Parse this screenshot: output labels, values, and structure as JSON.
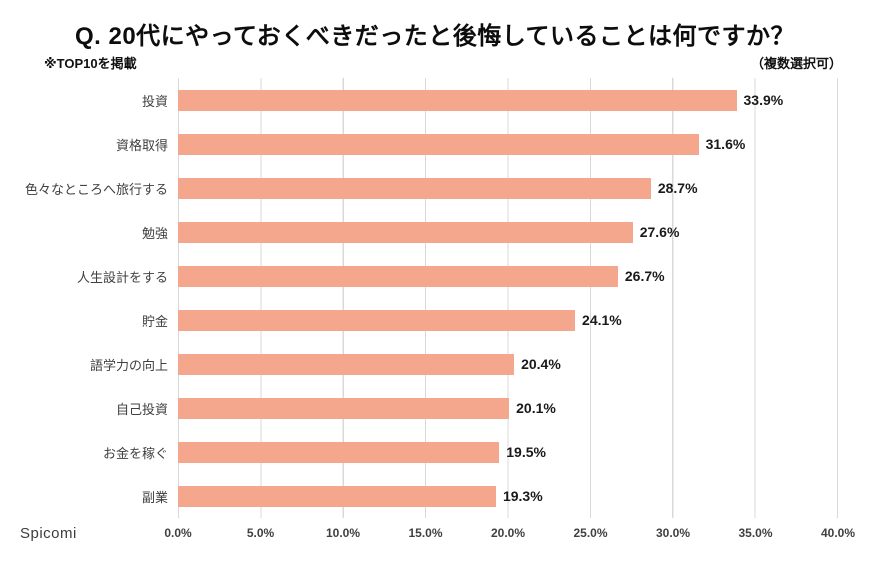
{
  "header": {
    "title": "Q. 20代にやっておくべきだったと後悔していることは何ですか？",
    "subtitle_left": "※TOP10を掲載",
    "subtitle_right": "（複数選択可）"
  },
  "footer": {
    "brand": "Spicomi"
  },
  "chart_data": {
    "type": "bar",
    "orientation": "horizontal",
    "title": "Q. 20代にやっておくべきだったと後悔していることは何ですか？",
    "categories": [
      "投資",
      "資格取得",
      "色々なところへ旅行する",
      "勉強",
      "人生設計をする",
      "貯金",
      "語学力の向上",
      "自己投資",
      "お金を稼ぐ",
      "副業"
    ],
    "values": [
      33.9,
      31.6,
      28.7,
      27.6,
      26.7,
      24.1,
      20.4,
      20.1,
      19.5,
      19.3
    ],
    "value_labels": [
      "33.9%",
      "31.6%",
      "28.7%",
      "27.6%",
      "26.7%",
      "24.1%",
      "20.4%",
      "20.1%",
      "19.5%",
      "19.3%"
    ],
    "xlabel": "",
    "ylabel": "",
    "xlim": [
      0,
      40
    ],
    "x_ticks": [
      "0.0%",
      "5.0%",
      "10.0%",
      "15.0%",
      "20.0%",
      "25.0%",
      "30.0%",
      "35.0%",
      "40.0%"
    ],
    "grid": true,
    "legend": false,
    "bar_color": "#F5A78E",
    "gridline_color": "#d9d9d9"
  }
}
